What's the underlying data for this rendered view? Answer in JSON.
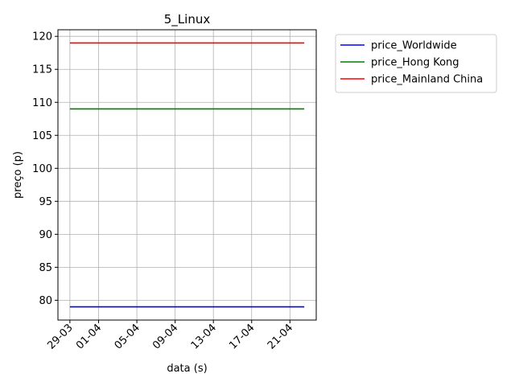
{
  "chart_data": {
    "type": "line",
    "title": "5_Linux",
    "xlabel": "data (s)",
    "ylabel": "preço (p)",
    "x_ticks": [
      "29-03",
      "01-04",
      "05-04",
      "09-04",
      "13-04",
      "17-04",
      "21-04"
    ],
    "x_tick_days": [
      0,
      3,
      7,
      11,
      15,
      19,
      23
    ],
    "x_range_days": [
      -1.25,
      25.75
    ],
    "x_last_day": 24.5,
    "y_ticks": [
      80,
      85,
      90,
      95,
      100,
      105,
      110,
      115,
      120
    ],
    "ylim": [
      77,
      121
    ],
    "grid": true,
    "legend_position": "outside-top-right",
    "series": [
      {
        "name": "price_Worldwide",
        "color": "#0000ff",
        "values": [
          79,
          79
        ]
      },
      {
        "name": "price_Hong Kong",
        "color": "#008000",
        "values": [
          109,
          109
        ]
      },
      {
        "name": "price_Mainland China",
        "color": "#ff0000",
        "values": [
          119,
          119
        ]
      }
    ]
  }
}
